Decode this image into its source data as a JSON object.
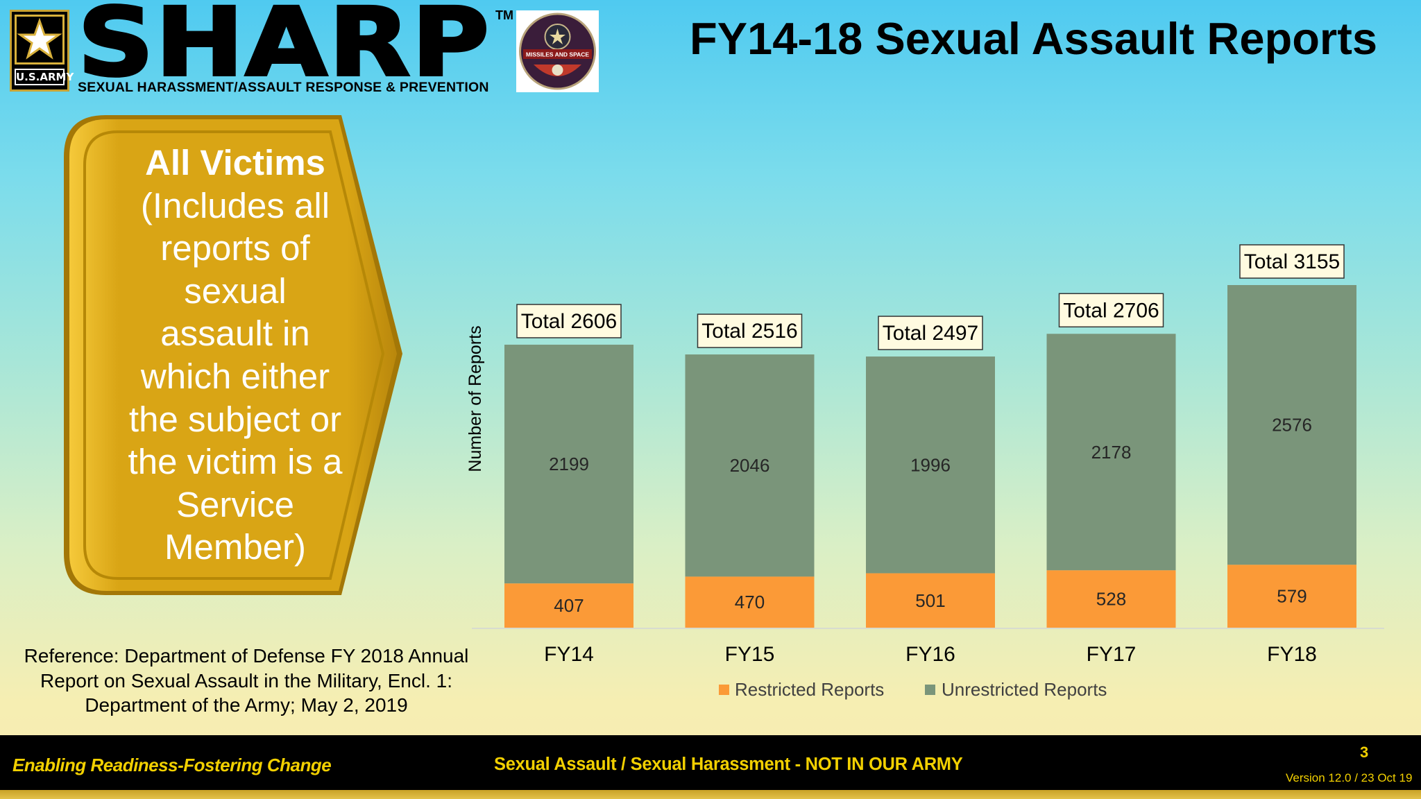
{
  "header": {
    "army_label": "U.S.ARMY",
    "sharp_word": "SHARP",
    "tm": "TM",
    "sharp_subtitle": "SEXUAL HARASSMENT/ASSAULT RESPONSE & PREVENTION",
    "patch_label": "MISSILES AND SPACE",
    "page_title": "FY14-18 Sexual Assault Reports"
  },
  "callout": {
    "heading": "All Victims",
    "body": "(Includes all reports of sexual assault in which either the subject or the victim is a Service Member)"
  },
  "reference": "Reference: Department of Defense FY 2018 Annual Report on Sexual Assault in the Military, Encl. 1: Department of the Army; May 2, 2019",
  "colors": {
    "restricted": "#fb9a37",
    "unrestricted": "#7a957a",
    "callout_gold": "#dcaa1b",
    "footer_yellow": "#f2d000"
  },
  "chart_data": {
    "type": "bar",
    "stacked": true,
    "categories": [
      "FY14",
      "FY15",
      "FY16",
      "FY17",
      "FY18"
    ],
    "series": [
      {
        "name": "Restricted Reports",
        "values": [
          407,
          470,
          501,
          528,
          579
        ]
      },
      {
        "name": "Unrestricted Reports",
        "values": [
          2199,
          2046,
          1996,
          2178,
          2576
        ]
      }
    ],
    "totals": [
      "Total 2606",
      "Total 2516",
      "Total 2497",
      "Total 2706",
      "Total 3155"
    ],
    "ylabel": "Number of Reports",
    "xlabel": "",
    "ylim": [
      0,
      3155
    ],
    "grid": false,
    "legend": "bottom"
  },
  "footer": {
    "left": "Enabling Readiness-Fostering Change",
    "center": "Sexual Assault / Sexual Harassment - NOT IN OUR ARMY",
    "page": "3",
    "version": "Version 12.0 / 23 Oct 19"
  }
}
